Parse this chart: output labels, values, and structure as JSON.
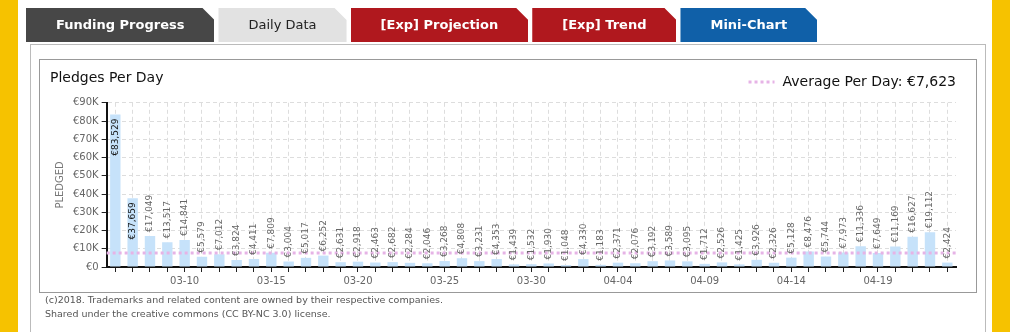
{
  "chart_data": {
    "type": "bar",
    "title": "Pledges Per Day",
    "ylabel": "PLEDGED",
    "categories": [
      null,
      null,
      null,
      null,
      "03-10",
      null,
      null,
      null,
      null,
      "03-15",
      null,
      null,
      null,
      null,
      "03-20",
      null,
      null,
      null,
      null,
      "03-25",
      null,
      null,
      null,
      null,
      "03-30",
      null,
      null,
      null,
      null,
      "04-04",
      null,
      null,
      null,
      null,
      "04-09",
      null,
      null,
      null,
      null,
      "04-14",
      null,
      null,
      null,
      null,
      "04-19",
      null,
      null,
      null,
      null
    ],
    "values": [
      83529,
      37659,
      17049,
      13517,
      14841,
      5579,
      7012,
      3824,
      4411,
      7809,
      3004,
      5017,
      6252,
      2631,
      2918,
      2463,
      2682,
      2284,
      2046,
      3268,
      4808,
      3231,
      4353,
      1439,
      1532,
      1930,
      1048,
      4330,
      1183,
      2371,
      2076,
      3192,
      3589,
      3095,
      1712,
      2526,
      1425,
      3926,
      2326,
      5128,
      8476,
      5744,
      7973,
      11336,
      7649,
      11169,
      16627,
      19112,
      2424
    ],
    "value_labels": [
      "€83,529",
      "€37,659",
      "€17,049",
      "€13,517",
      "€14,841",
      "€5,579",
      "€7,012",
      "€3,824",
      "€4,411",
      "€7,809",
      "€3,004",
      "€5,017",
      "€6,252",
      "€2,631",
      "€2,918",
      "€2,463",
      "€2,682",
      "€2,284",
      "€2,046",
      "€3,268",
      "€4,808",
      "€3,231",
      "€4,353",
      "€1,439",
      "€1,532",
      "€1,930",
      "€1,048",
      "€4,330",
      "€1,183",
      "€2,371",
      "€2,076",
      "€3,192",
      "€3,589",
      "€3,095",
      "€1,712",
      "€2,526",
      "€1,425",
      "€3,926",
      "€2,326",
      "€5,128",
      "€8,476",
      "€5,744",
      "€7,973",
      "€11,336",
      "€7,649",
      "€11,169",
      "€16,627",
      "€19,112",
      "€2,424"
    ],
    "color": "#c6e2fa",
    "ylim": [
      0,
      90000
    ],
    "yticks": [
      {
        "value": 0,
        "label": "€0"
      },
      {
        "value": 10000,
        "label": "€10K"
      },
      {
        "value": 20000,
        "label": "€20K"
      },
      {
        "value": 30000,
        "label": "€30K"
      },
      {
        "value": 40000,
        "label": "€40K"
      },
      {
        "value": 50000,
        "label": "€50K"
      },
      {
        "value": 60000,
        "label": "€60K"
      },
      {
        "value": 70000,
        "label": "€70K"
      },
      {
        "value": 80000,
        "label": "€80K"
      },
      {
        "value": 90000,
        "label": "€90K"
      }
    ],
    "grid": true,
    "ref_lines": [
      {
        "axis": "y",
        "value": 7623,
        "label": "Average Per Day: €7,623",
        "color": "#e6b3e6",
        "line_style": "dotted"
      }
    ],
    "annotations": [
      "Funding Progress",
      "Daily Data",
      "[Exp] Projection",
      "[Exp] Trend",
      "Mini-Chart",
      "(c)2018. Trademarks and related content are owned by their respective companies.\nShared under the creative commons (CC BY-NC 3.0) license."
    ]
  }
}
